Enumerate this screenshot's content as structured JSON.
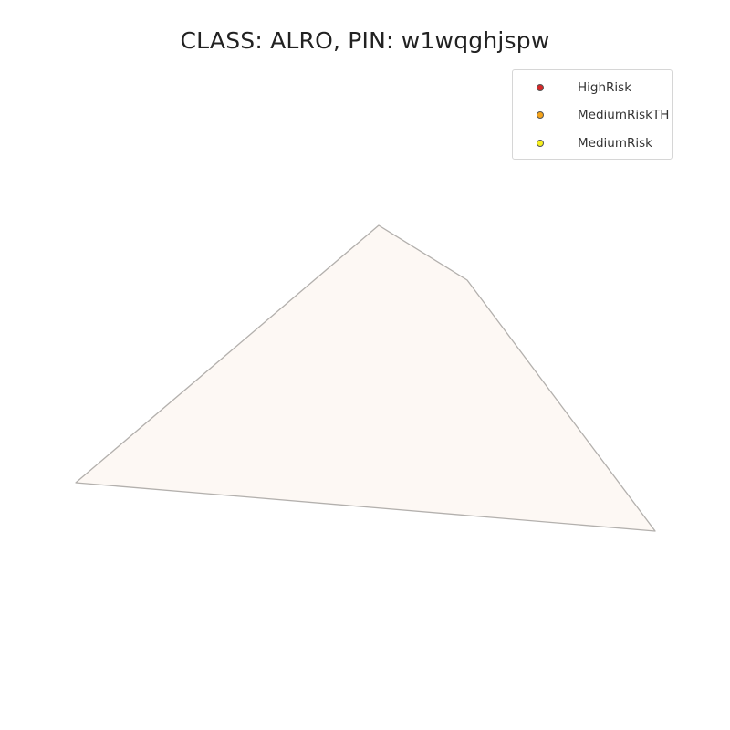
{
  "map": {
    "title": "CLASS: ALRO, PIN: w1wqghjspw",
    "parcel": {
      "fill": "#fdf8f4",
      "stroke": "#b3b0ad"
    },
    "legend": [
      {
        "label": "HighRisk",
        "color": "#d62728"
      },
      {
        "label": "MediumRiskTH",
        "color": "#f5a31a"
      },
      {
        "label": "MediumRisk",
        "color": "#f7f01e"
      }
    ]
  }
}
